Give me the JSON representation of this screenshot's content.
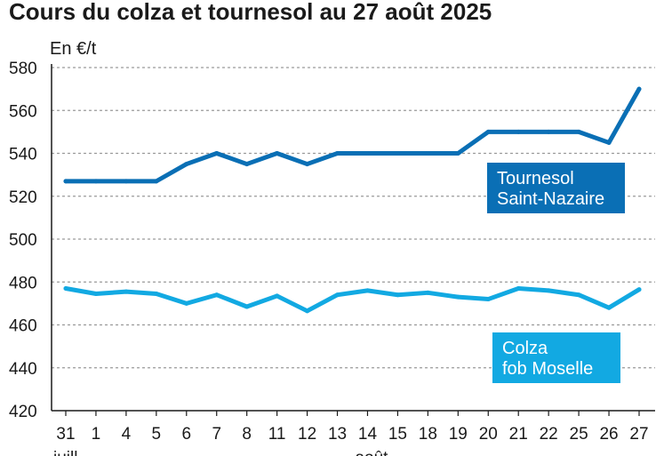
{
  "chart_data": {
    "type": "line",
    "title": "Cours du colza et tournesol au 27 août 2025",
    "ylabel": "En €/t",
    "ylim": [
      420,
      580
    ],
    "yticks": [
      "420",
      "440",
      "460",
      "480",
      "500",
      "520",
      "540",
      "560",
      "580"
    ],
    "grid": "horizontal",
    "categories": [
      "31",
      "1",
      "4",
      "5",
      "6",
      "7",
      "8",
      "11",
      "12",
      "13",
      "14",
      "15",
      "18",
      "19",
      "20",
      "21",
      "22",
      "25",
      "26",
      "27"
    ],
    "month_labels": [
      "juill.",
      "août"
    ],
    "series": [
      {
        "name": "Tournesol Saint-Nazaire",
        "label_lines": [
          "Tournesol",
          "Saint-Nazaire"
        ],
        "color": "#0a6fb5",
        "values": [
          527,
          527,
          527,
          527,
          535,
          540,
          535,
          540,
          535,
          540,
          540,
          540,
          540,
          540,
          550,
          550,
          550,
          550,
          545,
          570
        ]
      },
      {
        "name": "Colza fob Moselle",
        "label_lines": [
          "Colza",
          "fob Moselle"
        ],
        "color": "#12a9e2",
        "values": [
          477,
          474.5,
          475.5,
          474.5,
          470,
          474,
          468.5,
          473.5,
          466.5,
          474,
          476,
          474,
          475,
          473,
          472,
          477,
          476,
          474,
          468,
          476.5
        ]
      }
    ]
  }
}
